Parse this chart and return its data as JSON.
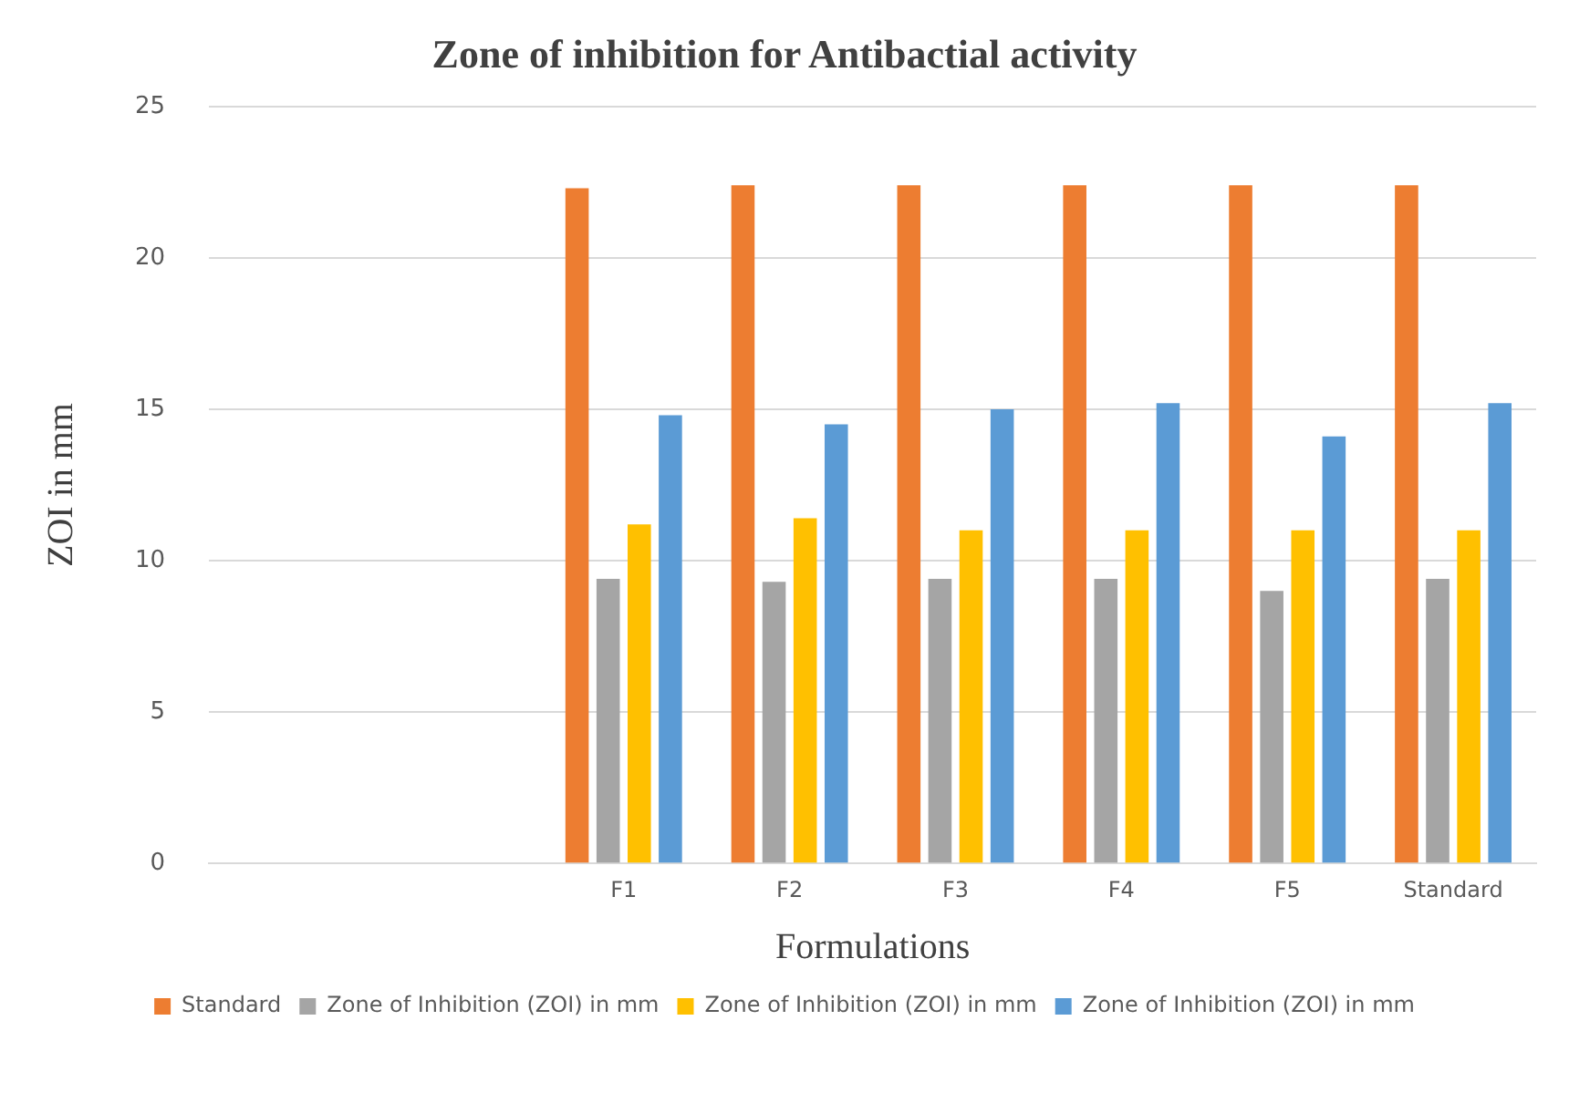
{
  "chart_data": {
    "type": "bar",
    "title": "Zone of inhibition for Antibactial activity",
    "xlabel": "Formulations",
    "ylabel": "ZOI in mm",
    "categories": [
      null,
      null,
      "F1",
      "F2",
      "F3",
      "F4",
      "F5",
      "Standard"
    ],
    "series": [
      {
        "name": "Standard",
        "color": "#ed7d31",
        "values": [
          null,
          null,
          22.3,
          22.4,
          22.4,
          22.4,
          22.4,
          22.4
        ]
      },
      {
        "name": "Zone of Inhibition (ZOI) in mm",
        "color": "#a5a5a5",
        "values": [
          null,
          null,
          9.4,
          9.3,
          9.4,
          9.4,
          9.0,
          9.4
        ]
      },
      {
        "name": "Zone of Inhibition (ZOI) in mm",
        "color": "#ffc000",
        "values": [
          null,
          null,
          11.2,
          11.4,
          11.0,
          11.0,
          11.0,
          11.0
        ]
      },
      {
        "name": "Zone of Inhibition (ZOI) in mm",
        "color": "#5b9bd5",
        "values": [
          null,
          null,
          14.8,
          14.5,
          15.0,
          15.2,
          14.1,
          15.2
        ]
      }
    ],
    "ylim": [
      0,
      25
    ],
    "yticks": [
      0,
      5,
      10,
      15,
      20,
      25
    ],
    "grid": "y",
    "legend": "bottom"
  }
}
